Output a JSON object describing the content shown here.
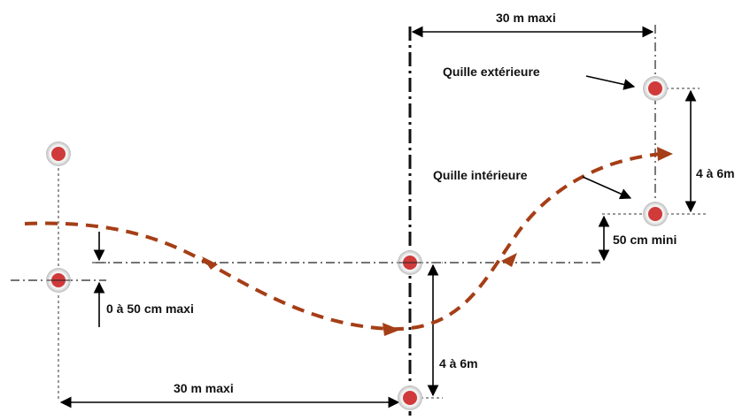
{
  "labels": {
    "top_dim": "30 m maxi",
    "bottom_dim": "30 m maxi",
    "outer_cone": "Quille extérieure",
    "inner_cone": "Quille intérieure",
    "right_gap": "4 à 6m",
    "center_gap": "4 à 6m",
    "min_offset": "50 cm mini",
    "left_offset": "0 à 50 cm maxi"
  },
  "colors": {
    "path": "#a53e16",
    "cone_fill": "#d03a3a",
    "cone_ring": "#e6e6e6"
  }
}
